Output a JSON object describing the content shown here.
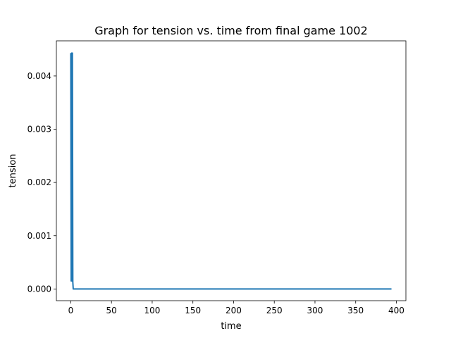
{
  "chart_data": {
    "type": "line",
    "title": "Graph for tension vs. time from final game 1002",
    "xlabel": "time",
    "ylabel": "tension",
    "xlim": [
      -17.7,
      411.7
    ],
    "ylim": [
      -0.00022,
      0.00466
    ],
    "xticks": [
      0,
      50,
      100,
      150,
      200,
      250,
      300,
      350,
      400
    ],
    "xtick_labels": [
      "0",
      "50",
      "100",
      "150",
      "200",
      "250",
      "300",
      "350",
      "400"
    ],
    "yticks": [
      0.0,
      0.001,
      0.002,
      0.003,
      0.004
    ],
    "ytick_labels": [
      "0.000",
      "0.001",
      "0.002",
      "0.003",
      "0.004"
    ],
    "grid": false,
    "legend": "none",
    "series": [
      {
        "color": "#1f77b4",
        "x": [
          0,
          0.5,
          1,
          1.5,
          2,
          2.5,
          3,
          394
        ],
        "y": [
          0.00443,
          0.00015,
          0.00443,
          0.00015,
          0.00443,
          0.00013,
          0.0,
          0.0
        ]
      }
    ]
  }
}
